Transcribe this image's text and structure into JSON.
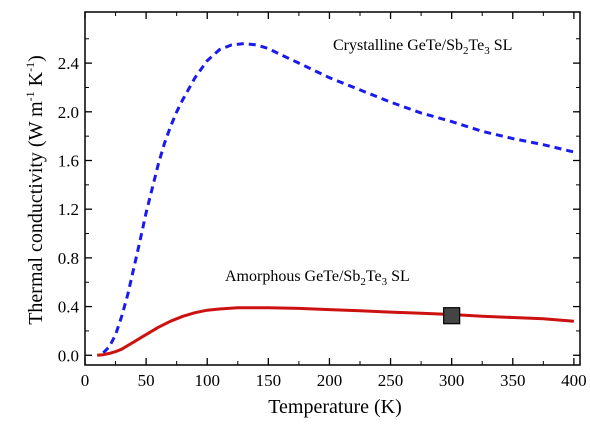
{
  "chart_data": {
    "type": "line",
    "xlabel": "Temperature (K)",
    "ylabel": {
      "base": "Thermal conductivity (W m",
      "sup1": "-1",
      "mid": "K",
      "sup2": "-1",
      "end": ")"
    },
    "xlim": [
      0,
      405
    ],
    "ylim": [
      -0.08,
      2.82
    ],
    "xticks": [
      0,
      50,
      100,
      150,
      200,
      250,
      300,
      350,
      400
    ],
    "yticks": [
      0.0,
      0.4,
      0.8,
      1.2,
      1.6,
      2.0,
      2.4
    ],
    "ytick_labels": [
      "0.0",
      "0.4",
      "0.8",
      "1.2",
      "1.6",
      "2.0",
      "2.4"
    ],
    "grid": false,
    "series": [
      {
        "name": "Crystalline GeTe/Sb2Te3 SL",
        "color": "#1a1aee",
        "style": "dashed",
        "x": [
          15,
          20,
          25,
          30,
          35,
          40,
          45,
          50,
          55,
          60,
          65,
          70,
          75,
          80,
          90,
          100,
          110,
          120,
          130,
          140,
          150,
          160,
          175,
          200,
          225,
          250,
          275,
          300,
          325,
          350,
          375,
          400
        ],
        "y": [
          0.02,
          0.07,
          0.17,
          0.32,
          0.5,
          0.72,
          0.94,
          1.17,
          1.37,
          1.57,
          1.74,
          1.88,
          2.0,
          2.1,
          2.28,
          2.42,
          2.51,
          2.55,
          2.56,
          2.55,
          2.52,
          2.47,
          2.4,
          2.28,
          2.18,
          2.08,
          1.99,
          1.92,
          1.84,
          1.78,
          1.73,
          1.67
        ]
      },
      {
        "name": "Amorphous GeTe/Sb2Te3 SL",
        "color": "#cc1111",
        "style": "solid",
        "x": [
          10,
          15,
          20,
          25,
          30,
          35,
          40,
          45,
          50,
          60,
          70,
          80,
          90,
          100,
          110,
          125,
          150,
          175,
          200,
          225,
          250,
          275,
          300,
          325,
          350,
          375,
          400
        ],
        "y": [
          0.0,
          0.005,
          0.015,
          0.03,
          0.05,
          0.08,
          0.11,
          0.14,
          0.17,
          0.23,
          0.28,
          0.32,
          0.35,
          0.37,
          0.38,
          0.39,
          0.39,
          0.385,
          0.375,
          0.365,
          0.355,
          0.345,
          0.335,
          0.32,
          0.31,
          0.3,
          0.28
        ]
      }
    ],
    "markers": [
      {
        "name": "measured-point",
        "x": 300,
        "y": 0.325,
        "shape": "square",
        "color": "#444444"
      }
    ],
    "annotations": [
      {
        "name": "crystalline-label",
        "pre": "Crystalline GeTe/Sb",
        "sub": "2",
        "post": "Te",
        "sub2": "3",
        "end": " SL"
      },
      {
        "name": "amorphous-label",
        "pre": "Amorphous GeTe/Sb",
        "sub": "2",
        "post": "Te",
        "sub2": "3",
        "end": " SL"
      }
    ]
  }
}
